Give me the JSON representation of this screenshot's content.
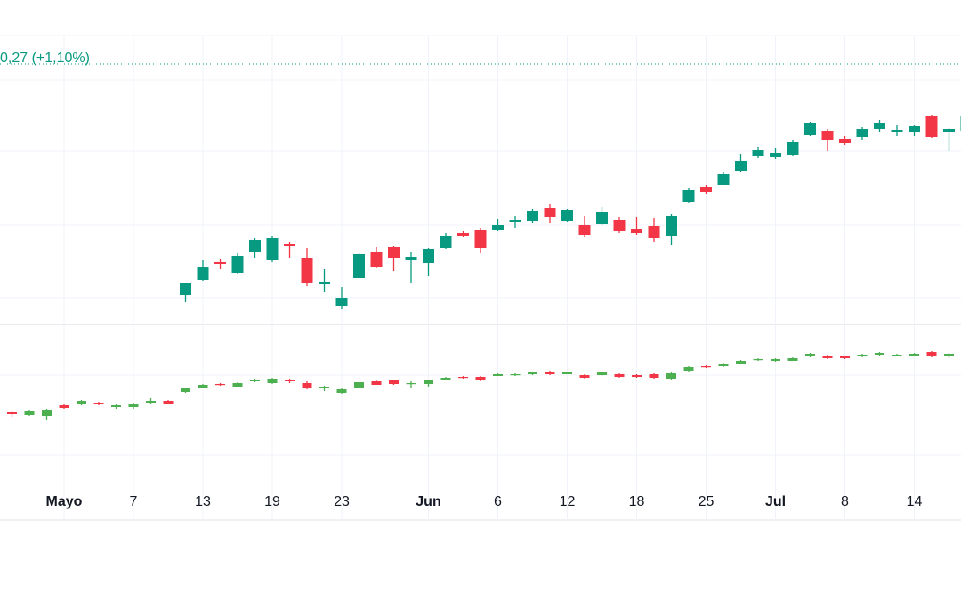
{
  "chart_data": [
    {
      "type": "candlestick",
      "annotation": "0,27 (+1,10%)",
      "price_line": 293,
      "ylim": [
        0,
        325
      ],
      "up_color": "#089981",
      "down_color": "#f23645",
      "open": [
        null,
        null,
        null,
        null,
        null,
        null,
        null,
        null,
        null,
        null,
        33,
        50,
        70,
        58,
        82,
        72,
        90,
        75,
        46,
        21,
        52,
        81,
        87,
        73,
        69,
        86,
        103,
        106,
        106,
        115,
        116,
        131,
        116,
        112,
        113,
        117,
        107,
        111,
        99,
        138,
        155,
        157,
        173,
        190,
        188,
        191,
        213,
        218,
        209,
        211,
        220,
        217,
        217,
        234,
        217,
        218
      ],
      "high": [
        null,
        null,
        null,
        null,
        null,
        null,
        null,
        null,
        null,
        null,
        47,
        73,
        74,
        80,
        97,
        99,
        93,
        86,
        62,
        42,
        80,
        87,
        88,
        82,
        86,
        103,
        105,
        109,
        119,
        122,
        130,
        136,
        130,
        122,
        132,
        121,
        121,
        120,
        124,
        153,
        157,
        171,
        192,
        200,
        198,
        207,
        228,
        220,
        212,
        222,
        230,
        224,
        224,
        236,
        221,
        236
      ],
      "low": [
        null,
        null,
        null,
        null,
        null,
        null,
        null,
        null,
        null,
        null,
        25,
        49,
        62,
        57,
        75,
        70,
        75,
        43,
        37,
        17,
        52,
        63,
        60,
        47,
        55,
        85,
        98,
        80,
        105,
        109,
        114,
        114,
        115,
        98,
        112,
        103,
        101,
        93,
        89,
        137,
        147,
        157,
        172,
        187,
        186,
        190,
        212,
        195,
        202,
        207,
        217,
        212,
        212,
        210,
        195,
        217
      ],
      "close": [
        null,
        null,
        null,
        null,
        null,
        null,
        null,
        null,
        null,
        null,
        47,
        65,
        68,
        77,
        95,
        97,
        88,
        47,
        48,
        30,
        79,
        65,
        75,
        76,
        85,
        99,
        99,
        86,
        112,
        117,
        128,
        121,
        129,
        101,
        126,
        105,
        103,
        97,
        122,
        151,
        149,
        169,
        184,
        196,
        193,
        205,
        227,
        207,
        204,
        220,
        227,
        219,
        223,
        211,
        220,
        234
      ]
    },
    {
      "type": "candlestick",
      "ylim": [
        0,
        220
      ],
      "up_color": "#4caf50",
      "down_color": "#f23645",
      "categories": [
        null,
        null,
        null,
        "Mayo",
        null,
        null,
        null,
        "7",
        null,
        null,
        null,
        "13",
        null,
        null,
        null,
        "19",
        null,
        null,
        null,
        "23",
        null,
        null,
        null,
        null,
        "Jun",
        null,
        null,
        null,
        "6",
        null,
        null,
        null,
        "12",
        null,
        null,
        null,
        "18",
        null,
        null,
        null,
        "25",
        null,
        null,
        null,
        "Jul",
        null,
        null,
        null,
        "8",
        null,
        null,
        null,
        "14",
        null,
        null,
        null
      ],
      "open": [
        121,
        118,
        117,
        129,
        130,
        132,
        127,
        127,
        132,
        134,
        144,
        149,
        153,
        150,
        156,
        154,
        158,
        154,
        148,
        143,
        149,
        156,
        157,
        153,
        153,
        157,
        161,
        161,
        162,
        163,
        164,
        167,
        164,
        163,
        163,
        164,
        163,
        164,
        159,
        168,
        173,
        173,
        176,
        180,
        179,
        179,
        184,
        185,
        184,
        184,
        186,
        185,
        185,
        189,
        185,
        186
      ],
      "high": [
        123,
        124,
        125,
        130,
        135,
        133,
        131,
        132,
        137,
        135,
        149,
        153,
        154,
        155,
        159,
        160,
        159,
        156,
        151,
        149,
        155,
        157,
        158,
        156,
        157,
        161,
        162,
        162,
        165,
        165,
        167,
        168,
        167,
        164,
        167,
        165,
        164,
        165,
        166,
        173,
        174,
        177,
        180,
        182,
        182,
        183,
        188,
        186,
        185,
        187,
        189,
        187,
        188,
        190,
        188,
        191
      ],
      "low": [
        116,
        117,
        113,
        125,
        129,
        129,
        125,
        125,
        130,
        130,
        143,
        148,
        151,
        150,
        155,
        153,
        154,
        147,
        145,
        142,
        149,
        152,
        152,
        149,
        150,
        157,
        159,
        156,
        162,
        162,
        163,
        163,
        164,
        159,
        162,
        160,
        160,
        159,
        158,
        167,
        171,
        172,
        175,
        179,
        178,
        179,
        183,
        181,
        181,
        183,
        185,
        184,
        184,
        183,
        182,
        185
      ],
      "close": [
        119,
        123,
        124,
        126,
        134,
        130,
        129,
        130,
        134,
        131,
        148,
        152,
        152,
        154,
        158,
        159,
        156,
        148,
        150,
        147,
        155,
        152,
        153,
        154,
        157,
        160,
        160,
        157,
        164,
        164,
        166,
        164,
        166,
        160,
        166,
        161,
        161,
        160,
        165,
        172,
        172,
        176,
        179,
        181,
        181,
        182,
        187,
        182,
        182,
        186,
        188,
        186,
        187,
        184,
        187,
        190
      ]
    }
  ]
}
